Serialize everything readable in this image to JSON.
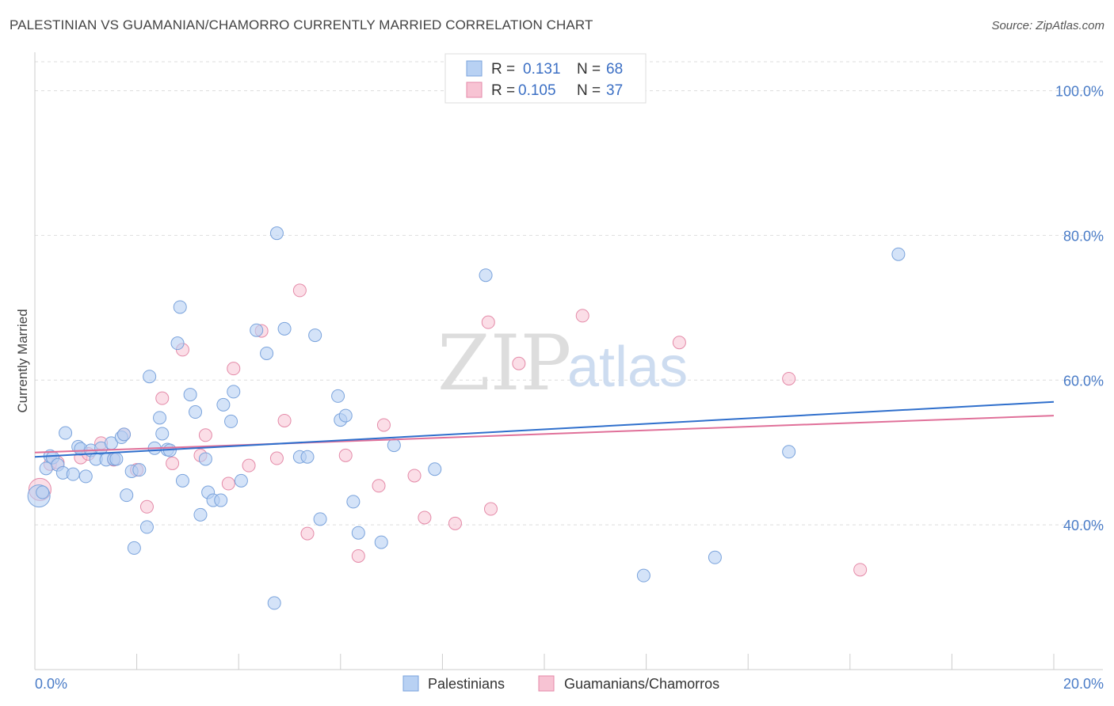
{
  "header": {
    "title": "PALESTINIAN VS GUAMANIAN/CHAMORRO CURRENTLY MARRIED CORRELATION CHART",
    "source": "Source: ZipAtlas.com"
  },
  "watermark": {
    "zip": "ZIP",
    "atlas": "atlas"
  },
  "legend": {
    "rows": [
      {
        "r_label": "R =",
        "r_value": "0.131",
        "n_label": "N =",
        "n_value": "68"
      },
      {
        "r_label": "R =",
        "r_value": "0.105",
        "n_label": "N =",
        "n_value": "37"
      }
    ]
  },
  "bottom_legend": [
    "Palestinians",
    "Guamanians/Chamorros"
  ],
  "colors": {
    "blue_fill": "#b8d1f3",
    "blue_stroke": "#7aa3dc",
    "blue_line": "#2f6fcc",
    "pink_fill": "#f7c3d3",
    "pink_stroke": "#e48aa8",
    "pink_line": "#e07099",
    "grid": "#dddddd",
    "axis_text": "#4a7cc7"
  },
  "chart_data": {
    "type": "scatter",
    "title": "PALESTINIAN VS GUAMANIAN/CHAMORRO CURRENTLY MARRIED CORRELATION CHART",
    "xlabel": "",
    "ylabel": "Currently Married",
    "xlim": [
      0,
      20
    ],
    "ylim": [
      20,
      104
    ],
    "x_tick_labels": [
      "0.0%",
      "20.0%"
    ],
    "y_ticks": [
      40,
      60,
      80,
      100
    ],
    "y_tick_labels": [
      "40.0%",
      "60.0%",
      "80.0%",
      "100.0%"
    ],
    "grid": "horizontal dashed",
    "legend_position": "top-center",
    "series": [
      {
        "name": "Palestinians",
        "r": 0.131,
        "n": 68,
        "trend": {
          "x": [
            0,
            20
          ],
          "y": [
            49.4,
            57.0
          ]
        },
        "points": [
          [
            0.08,
            44.0
          ],
          [
            0.15,
            44.5
          ],
          [
            0.22,
            47.8
          ],
          [
            0.3,
            49.5
          ],
          [
            0.35,
            49.3
          ],
          [
            0.45,
            48.3
          ],
          [
            0.55,
            47.2
          ],
          [
            0.6,
            52.7
          ],
          [
            0.75,
            47.0
          ],
          [
            0.85,
            50.8
          ],
          [
            0.9,
            50.5
          ],
          [
            1.0,
            46.7
          ],
          [
            1.1,
            50.3
          ],
          [
            1.2,
            49.1
          ],
          [
            1.3,
            50.6
          ],
          [
            1.4,
            49.0
          ],
          [
            1.5,
            51.3
          ],
          [
            1.55,
            49.1
          ],
          [
            1.6,
            49.1
          ],
          [
            1.7,
            52.1
          ],
          [
            1.75,
            52.5
          ],
          [
            1.8,
            44.1
          ],
          [
            1.9,
            47.4
          ],
          [
            1.95,
            36.8
          ],
          [
            2.05,
            47.6
          ],
          [
            2.2,
            39.7
          ],
          [
            2.25,
            60.5
          ],
          [
            2.35,
            50.6
          ],
          [
            2.45,
            54.8
          ],
          [
            2.5,
            52.6
          ],
          [
            2.6,
            50.4
          ],
          [
            2.65,
            50.3
          ],
          [
            2.8,
            65.1
          ],
          [
            2.85,
            70.1
          ],
          [
            2.9,
            46.1
          ],
          [
            3.05,
            58.0
          ],
          [
            3.15,
            55.6
          ],
          [
            3.25,
            41.4
          ],
          [
            3.35,
            49.1
          ],
          [
            3.4,
            44.5
          ],
          [
            3.5,
            43.4
          ],
          [
            3.65,
            43.4
          ],
          [
            3.7,
            56.6
          ],
          [
            3.85,
            54.3
          ],
          [
            3.9,
            58.4
          ],
          [
            4.05,
            46.1
          ],
          [
            4.35,
            66.9
          ],
          [
            4.55,
            63.7
          ],
          [
            4.7,
            29.2
          ],
          [
            4.75,
            80.3
          ],
          [
            4.9,
            67.1
          ],
          [
            5.2,
            49.4
          ],
          [
            5.35,
            49.4
          ],
          [
            5.5,
            66.2
          ],
          [
            5.6,
            40.8
          ],
          [
            5.95,
            57.8
          ],
          [
            6.0,
            54.5
          ],
          [
            6.1,
            55.1
          ],
          [
            6.25,
            43.2
          ],
          [
            6.35,
            38.9
          ],
          [
            6.8,
            37.6
          ],
          [
            7.05,
            51.0
          ],
          [
            7.85,
            47.7
          ],
          [
            8.85,
            74.5
          ],
          [
            11.95,
            33.0
          ],
          [
            13.35,
            35.5
          ],
          [
            14.8,
            50.1
          ],
          [
            16.95,
            77.4
          ]
        ]
      },
      {
        "name": "Guamanians/Chamorros",
        "r": 0.105,
        "n": 37,
        "trend": {
          "x": [
            0,
            20
          ],
          "y": [
            50.0,
            55.1
          ]
        },
        "points": [
          [
            0.1,
            44.9
          ],
          [
            0.3,
            48.4
          ],
          [
            0.45,
            48.6
          ],
          [
            0.9,
            49.3
          ],
          [
            1.05,
            49.8
          ],
          [
            1.3,
            51.3
          ],
          [
            1.55,
            49.0
          ],
          [
            1.75,
            52.5
          ],
          [
            2.0,
            47.6
          ],
          [
            2.2,
            42.5
          ],
          [
            2.5,
            57.5
          ],
          [
            2.7,
            48.5
          ],
          [
            2.9,
            64.2
          ],
          [
            3.25,
            49.6
          ],
          [
            3.35,
            52.4
          ],
          [
            3.8,
            45.7
          ],
          [
            3.9,
            61.6
          ],
          [
            4.2,
            48.2
          ],
          [
            4.45,
            66.8
          ],
          [
            4.75,
            49.2
          ],
          [
            4.9,
            54.4
          ],
          [
            5.2,
            72.4
          ],
          [
            5.35,
            38.8
          ],
          [
            6.1,
            49.6
          ],
          [
            6.35,
            35.7
          ],
          [
            6.75,
            45.4
          ],
          [
            6.85,
            53.8
          ],
          [
            7.45,
            46.8
          ],
          [
            7.65,
            41.0
          ],
          [
            8.25,
            40.2
          ],
          [
            8.9,
            68.0
          ],
          [
            8.95,
            42.2
          ],
          [
            9.5,
            62.3
          ],
          [
            10.75,
            68.9
          ],
          [
            12.65,
            65.2
          ],
          [
            14.8,
            60.2
          ],
          [
            16.2,
            33.8
          ]
        ]
      }
    ]
  }
}
